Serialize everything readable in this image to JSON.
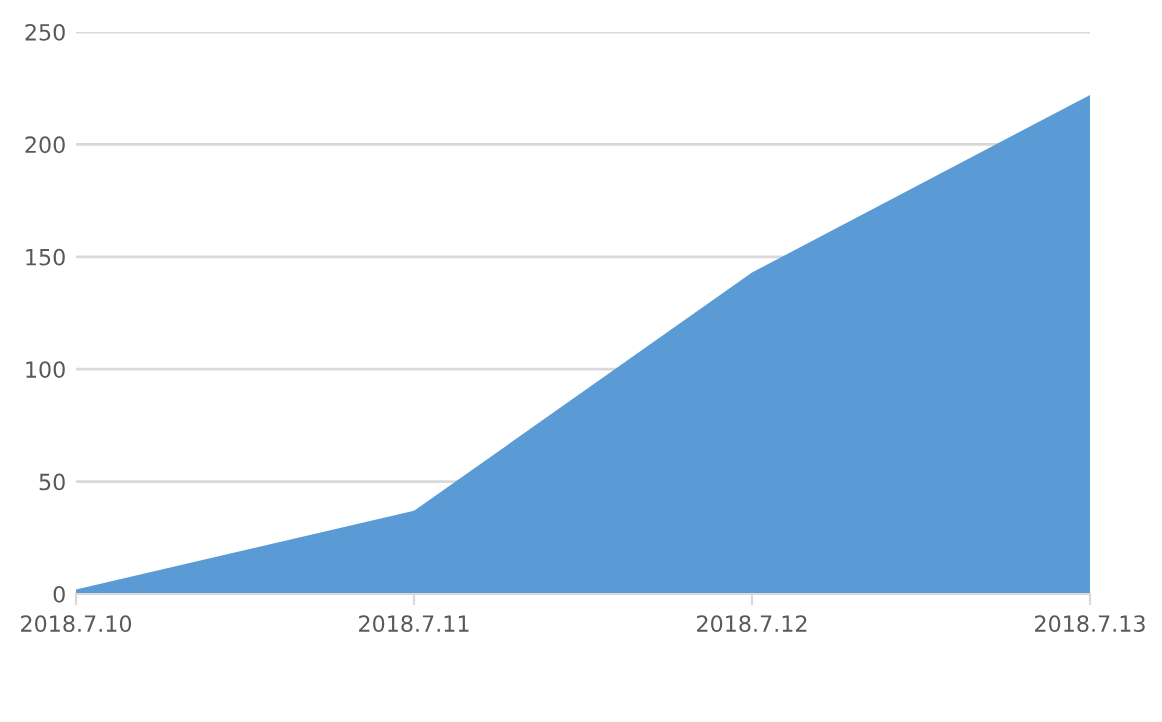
{
  "chart_data": {
    "type": "area",
    "categories": [
      "2018.7.10",
      "2018.7.11",
      "2018.7.12",
      "2018.7.13"
    ],
    "series": [
      {
        "color": "#5b9bd5",
        "values": [
          2,
          37,
          143,
          222
        ]
      }
    ],
    "ylim": [
      0,
      250
    ],
    "yticks": [
      0,
      50,
      100,
      150,
      200,
      250
    ],
    "grid": "y"
  }
}
